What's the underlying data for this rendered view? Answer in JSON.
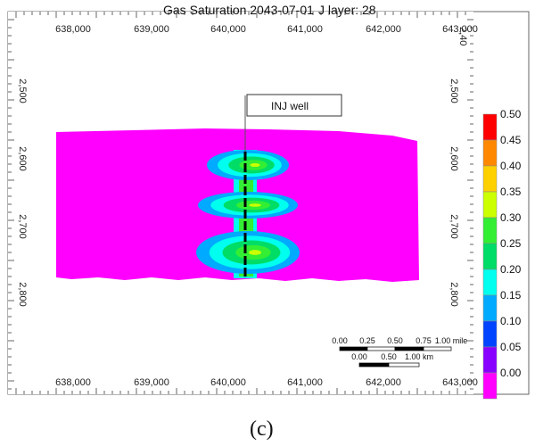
{
  "title": "Gas Saturation 2043-07-01",
  "layer_label": "J layer: 28",
  "x_ticks": [
    "638,000",
    "639,000",
    "640,000",
    "641,000",
    "642,000",
    "643,000"
  ],
  "y_ticks": [
    "2,500",
    "2,600",
    "2,700",
    "2,800"
  ],
  "corner_label": "2,40",
  "well_label": "INJ well",
  "legend": {
    "values": [
      "0.50",
      "0.45",
      "0.40",
      "0.35",
      "0.30",
      "0.25",
      "0.20",
      "0.15",
      "0.10",
      "0.05",
      "0.00"
    ],
    "colors": [
      "#ff0000",
      "#ff8800",
      "#ffd000",
      "#ccff00",
      "#33ee33",
      "#00dd66",
      "#00ffee",
      "#00aaff",
      "#0044ff",
      "#8800ff",
      "#ff00ff"
    ]
  },
  "scale_bar": {
    "mile_ticks": [
      "0.00",
      "0.25",
      "0.50",
      "0.75",
      "1.00 mile"
    ],
    "km_ticks": [
      "0.00",
      "0.50",
      "1.00 km"
    ]
  },
  "caption": "(c)"
}
